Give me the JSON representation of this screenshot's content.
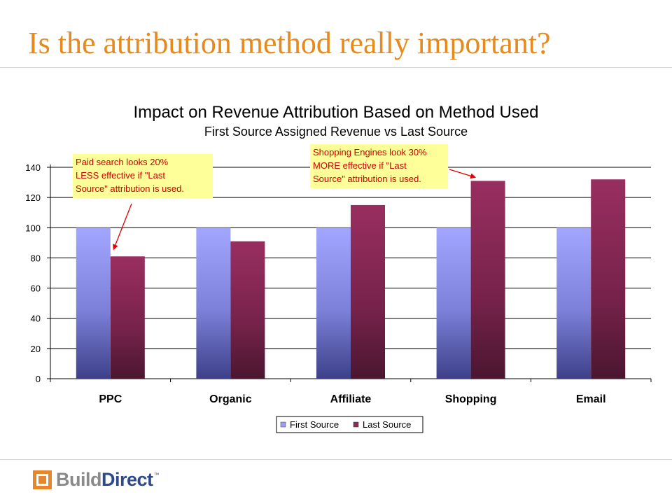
{
  "slide": {
    "title": "Is the attribution method really important?"
  },
  "logo": {
    "part1": "Build",
    "part2": "Direct",
    "tm": "™"
  },
  "colors": {
    "title": "#E68A1E",
    "first_source": "#9A9EF8",
    "last_source": "#8E2B57",
    "callout_fill": "#FFFF99",
    "callout_text": "#CC0000",
    "arrow": "#E00000"
  },
  "chart_data": {
    "type": "bar",
    "title": "Impact on Revenue Attribution Based on Method Used",
    "subtitle": "First Source Assigned Revenue vs Last Source",
    "categories": [
      "PPC",
      "Organic",
      "Affiliate",
      "Shopping",
      "Email"
    ],
    "series": [
      {
        "name": "First Source",
        "values": [
          100,
          100,
          100,
          100,
          100
        ]
      },
      {
        "name": "Last Source",
        "values": [
          81,
          91,
          115,
          131,
          132
        ]
      }
    ],
    "ylim": [
      0,
      140
    ],
    "yticks": [
      "0",
      "20",
      "40",
      "60",
      "80",
      "100",
      "120",
      "140"
    ],
    "grid": true,
    "legend_position": "bottom",
    "annotations": [
      {
        "text": [
          "Paid search looks 20%",
          "LESS effective if \"Last",
          "Source\" attribution is used."
        ],
        "category": "PPC",
        "series": "Last Source"
      },
      {
        "text": [
          "Shopping Engines look 30%",
          "MORE effective if \"Last",
          "Source\" attribution is used."
        ],
        "category": "Shopping",
        "series": "Last Source"
      }
    ]
  }
}
